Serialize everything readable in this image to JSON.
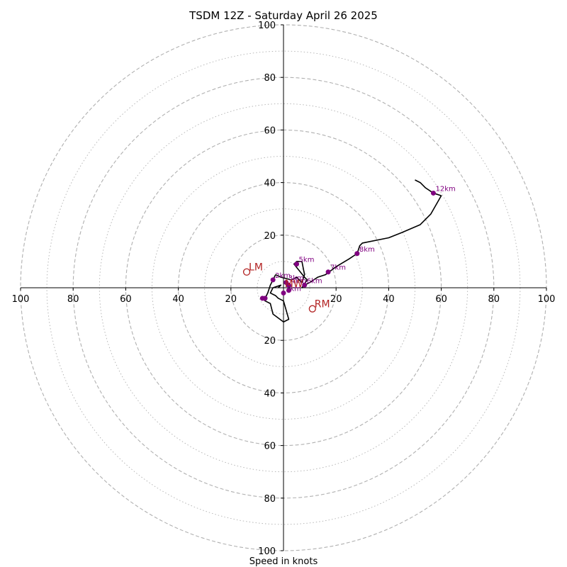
{
  "chart_data": {
    "type": "scatter",
    "title": "TSDM 12Z - Saturday April 26 2025",
    "xlabel": "Speed in knots",
    "ylabel": "",
    "xlim": [
      -100,
      100
    ],
    "ylim": [
      -100,
      100
    ],
    "ring_step": 10,
    "labeled_ring_step": 20,
    "tick_labels": [
      "100",
      "80",
      "60",
      "40",
      "20",
      "20",
      "40",
      "60",
      "80",
      "100"
    ],
    "hodograph_trace": [
      [
        -3,
        5
      ],
      [
        -1,
        4
      ],
      [
        3,
        3
      ],
      [
        5,
        4
      ],
      [
        7,
        2
      ],
      [
        8,
        5
      ],
      [
        7,
        10
      ],
      [
        5,
        10
      ],
      [
        4,
        9
      ],
      [
        8,
        4
      ],
      [
        9,
        3
      ],
      [
        7,
        0
      ],
      [
        8,
        1
      ],
      [
        10,
        2
      ],
      [
        13,
        4
      ],
      [
        16,
        5
      ],
      [
        20,
        8
      ],
      [
        25,
        11
      ],
      [
        28,
        13
      ],
      [
        29,
        16
      ],
      [
        30,
        17
      ],
      [
        40,
        19
      ],
      [
        45,
        21
      ],
      [
        52,
        24
      ],
      [
        56,
        28
      ],
      [
        60,
        35
      ],
      [
        57,
        36
      ],
      [
        54,
        38
      ],
      [
        52,
        40
      ],
      [
        50,
        41
      ]
    ],
    "hodograph_trace_lower": [
      [
        -3,
        5
      ],
      [
        -5,
        1
      ],
      [
        -6,
        -2
      ],
      [
        -7,
        -4
      ],
      [
        -8,
        -4
      ],
      [
        -7,
        -5
      ],
      [
        -5,
        -6
      ],
      [
        -4,
        -10
      ],
      [
        0,
        -13
      ],
      [
        2,
        -12
      ],
      [
        0,
        -5
      ],
      [
        -2,
        -4
      ],
      [
        -3,
        -3
      ],
      [
        -5,
        -2
      ],
      [
        -4,
        0
      ],
      [
        -1,
        1
      ],
      [
        -2,
        0
      ]
    ],
    "height_markers": [
      {
        "label": "1km",
        "x": 0,
        "y": -2
      },
      {
        "label": "2km",
        "x": -4,
        "y": 3
      },
      {
        "label": "3km",
        "x": 1,
        "y": 2
      },
      {
        "label": "4km",
        "x": 2,
        "y": 1
      },
      {
        "label": "5km",
        "x": 5,
        "y": 9
      },
      {
        "label": "6km",
        "x": 8,
        "y": 1
      },
      {
        "label": "7km",
        "x": 17,
        "y": 6
      },
      {
        "label": "8km",
        "x": 28,
        "y": 13
      },
      {
        "label": "12km",
        "x": 57,
        "y": 36
      },
      {
        "label": "",
        "x": -8,
        "y": -4
      },
      {
        "label": "",
        "x": -7,
        "y": -4
      },
      {
        "label": "",
        "x": 2,
        "y": -1
      }
    ],
    "storm_motion": [
      {
        "label": "LM",
        "x": -14,
        "y": 6
      },
      {
        "label": "RM",
        "x": 11,
        "y": -8
      }
    ],
    "mean_wind_label": "MW",
    "mean_wind": {
      "x": 1,
      "y": 0
    },
    "colors": {
      "trace": "#000000",
      "markers": "#800080",
      "storm_motion": "#b22222",
      "grid": "#b0b0b0"
    }
  }
}
